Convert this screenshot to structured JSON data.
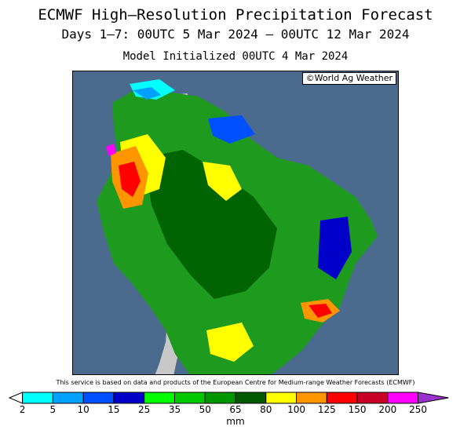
{
  "header": {
    "title": "ECMWF High—Resolution Precipitation Forecast",
    "period": "Days 1—7: 00UTC 5 Mar 2024 — 00UTC 12 Mar 2024",
    "initialized": "Model Initialized 00UTC 4 Mar 2024"
  },
  "map": {
    "credit": "©World Ag Weather",
    "ocean_color": "#4a6a8e",
    "dry_land_color": "#c8c8c8",
    "region": "South America"
  },
  "footer": {
    "disclaimer": "This service is based on data and products of the European Centre for Medium-range Weather Forecasts (ECMWF)",
    "unit": "mm"
  },
  "legend": {
    "boundaries": [
      "2",
      "5",
      "10",
      "15",
      "25",
      "35",
      "50",
      "65",
      "80",
      "100",
      "125",
      "150",
      "200",
      "250"
    ],
    "colors": [
      "#00ffff",
      "#00a0ff",
      "#0050ff",
      "#0000c8",
      "#00ff00",
      "#00c800",
      "#009600",
      "#005a00",
      "#ffff00",
      "#ff9600",
      "#ff0000",
      "#c80028",
      "#ff00ff",
      "#9b30d0"
    ]
  }
}
